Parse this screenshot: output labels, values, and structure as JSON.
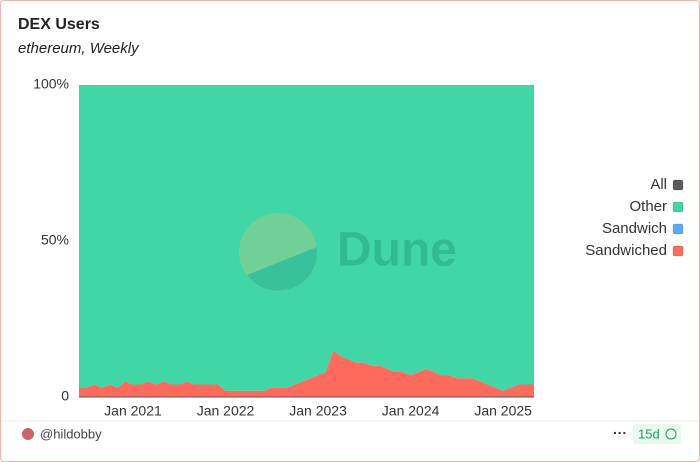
{
  "chart_data": {
    "type": "area",
    "stacked": true,
    "title": "DEX Users",
    "subtitle": "ethereum, Weekly",
    "watermark": "Dune",
    "author": "@hildobby",
    "refresh": "15d",
    "x": [
      "2020-06",
      "2020-07",
      "2020-08",
      "2020-09",
      "2020-10",
      "2020-11",
      "2020-12",
      "2021-01",
      "2021-02",
      "2021-03",
      "2021-04",
      "2021-05",
      "2021-06",
      "2021-07",
      "2021-08",
      "2021-09",
      "2021-10",
      "2021-11",
      "2021-12",
      "2022-01",
      "2022-02",
      "2022-03",
      "2022-04",
      "2022-05",
      "2022-06",
      "2022-07",
      "2022-08",
      "2022-09",
      "2022-10",
      "2022-11",
      "2022-12",
      "2023-01",
      "2023-02",
      "2023-03",
      "2023-04",
      "2023-05",
      "2023-06",
      "2023-07",
      "2023-08",
      "2023-09",
      "2023-10",
      "2023-11",
      "2023-12",
      "2024-01",
      "2024-02",
      "2024-03",
      "2024-04",
      "2024-05",
      "2024-06",
      "2024-07",
      "2024-08",
      "2024-09",
      "2024-10",
      "2024-11",
      "2024-12",
      "2025-01",
      "2025-02",
      "2025-03",
      "2025-04",
      "2025-05"
    ],
    "series": [
      {
        "name": "Sandwiched",
        "color": "#fe6a5c",
        "values": [
          3,
          3,
          4,
          3,
          4,
          3,
          5,
          4,
          4,
          5,
          4,
          5,
          4,
          4,
          5,
          4,
          4,
          4,
          4,
          2,
          2,
          2,
          2,
          2,
          2,
          3,
          3,
          3,
          4,
          5,
          6,
          7,
          8,
          15,
          13,
          12,
          11,
          11,
          10,
          10,
          9,
          8,
          8,
          7,
          8,
          9,
          8,
          7,
          7,
          6,
          6,
          6,
          5,
          4,
          3,
          2,
          3,
          4,
          4,
          4
        ]
      },
      {
        "name": "Sandwich",
        "color": "#5aaaf7",
        "values": [
          0,
          0,
          0,
          0,
          0,
          0,
          0,
          0,
          0,
          0,
          0,
          0,
          0,
          0,
          0,
          0,
          0,
          0,
          0,
          0,
          0,
          0,
          0,
          0,
          0,
          0,
          0,
          0,
          0,
          0,
          0,
          0,
          0,
          0,
          0,
          0,
          0,
          0,
          0,
          0,
          0,
          0,
          0,
          0,
          0,
          0,
          0,
          0,
          0,
          0,
          0,
          0,
          0,
          0,
          0,
          0,
          0,
          0,
          0,
          0
        ]
      },
      {
        "name": "Other",
        "color": "#41d6a5",
        "values": [
          97,
          97,
          96,
          97,
          96,
          97,
          95,
          96,
          96,
          95,
          96,
          95,
          96,
          96,
          95,
          96,
          96,
          96,
          96,
          98,
          98,
          98,
          98,
          98,
          98,
          97,
          97,
          97,
          96,
          95,
          94,
          93,
          92,
          85,
          87,
          88,
          89,
          89,
          90,
          90,
          91,
          92,
          92,
          93,
          92,
          91,
          92,
          93,
          93,
          94,
          94,
          94,
          95,
          96,
          97,
          98,
          97,
          96,
          96,
          96
        ]
      },
      {
        "name": "All",
        "color": "#5b5b5f",
        "values": [
          null,
          null,
          null,
          null,
          null,
          null,
          null,
          null,
          null,
          null,
          null,
          null,
          null,
          null,
          null,
          null,
          null,
          null,
          null,
          null,
          null,
          null,
          null,
          null,
          null,
          null,
          null,
          null,
          null,
          null,
          null,
          null,
          null,
          null,
          null,
          null,
          null,
          null,
          null,
          null,
          null,
          null,
          null,
          null,
          null,
          null,
          null,
          null,
          null,
          null,
          null,
          null,
          null,
          null,
          null,
          null,
          null,
          null,
          null,
          null
        ]
      }
    ],
    "legend_order": [
      3,
      2,
      1,
      0
    ],
    "xlim": [
      "2020-06",
      "2025-05"
    ],
    "xticks": [
      {
        "value": "2021-01",
        "label": "Jan 2021"
      },
      {
        "value": "2022-01",
        "label": "Jan 2022"
      },
      {
        "value": "2023-01",
        "label": "Jan 2023"
      },
      {
        "value": "2024-01",
        "label": "Jan 2024"
      },
      {
        "value": "2025-01",
        "label": "Jan 2025"
      }
    ],
    "ylim": [
      0,
      100
    ],
    "yticks": [
      0,
      {
        "value": 50,
        "label": "50%"
      },
      {
        "value": 100,
        "label": "100%"
      }
    ],
    "grid": false,
    "legend": "right"
  }
}
